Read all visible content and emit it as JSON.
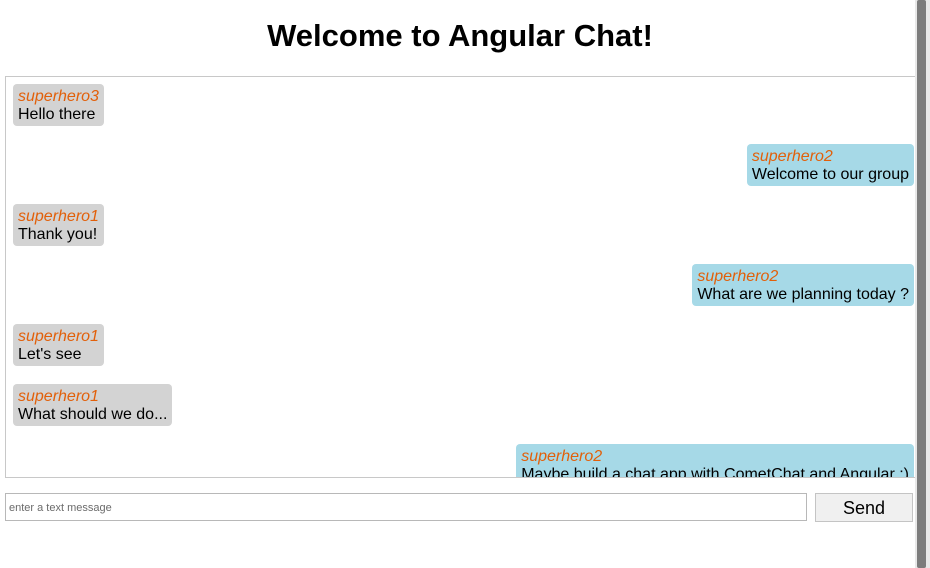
{
  "header": {
    "title": "Welcome to Angular Chat!"
  },
  "messages": [
    {
      "sender": "superhero3",
      "text": "Hello there"
    },
    {
      "sender": "superhero2",
      "text": "Welcome to our group"
    },
    {
      "sender": "superhero1",
      "text": "Thank you!"
    },
    {
      "sender": "superhero2",
      "text": "What are we planning today ?"
    },
    {
      "sender": "superhero1",
      "text": "Let's see"
    },
    {
      "sender": "superhero1",
      "text": "What should we do..."
    },
    {
      "sender": "superhero2",
      "text": "Maybe build a chat app with CometChat and Angular :)"
    }
  ],
  "composer": {
    "placeholder": "enter a text message",
    "button": "Send"
  }
}
